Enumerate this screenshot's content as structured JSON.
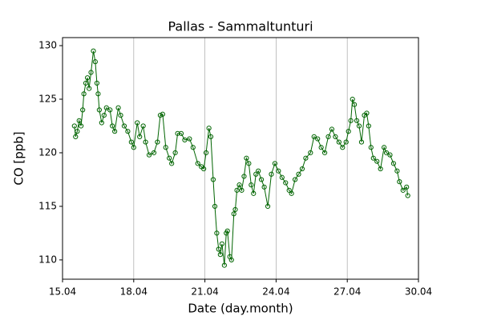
{
  "chart_data": {
    "type": "line",
    "title": "Pallas - Sammaltunturi",
    "xlabel": "Date (day.month)",
    "ylabel": "CO [ppb]",
    "color": "#006400",
    "marker": "open-circle",
    "xgrid": true,
    "xlim": [
      15,
      30
    ],
    "ylim": [
      108.2,
      130.75
    ],
    "xticks": [
      {
        "value": 15,
        "label": "15.04"
      },
      {
        "value": 18,
        "label": "18.04"
      },
      {
        "value": 21,
        "label": "21.04"
      },
      {
        "value": 24,
        "label": "24.04"
      },
      {
        "value": 27,
        "label": "27.04"
      },
      {
        "value": 30,
        "label": "30.04"
      }
    ],
    "yticks": [
      110,
      115,
      120,
      125,
      130
    ],
    "x": [
      15.5,
      15.55,
      15.62,
      15.7,
      15.78,
      15.85,
      15.9,
      15.98,
      16.05,
      16.12,
      16.2,
      16.3,
      16.38,
      16.45,
      16.5,
      16.55,
      16.65,
      16.75,
      16.85,
      17.0,
      17.1,
      17.2,
      17.35,
      17.45,
      17.6,
      17.75,
      17.9,
      18.0,
      18.15,
      18.25,
      18.4,
      18.5,
      18.65,
      18.85,
      19.0,
      19.12,
      19.22,
      19.35,
      19.5,
      19.6,
      19.75,
      19.85,
      20.0,
      20.15,
      20.35,
      20.5,
      20.7,
      20.85,
      20.95,
      21.05,
      21.17,
      21.25,
      21.35,
      21.42,
      21.5,
      21.58,
      21.65,
      21.72,
      21.82,
      21.9,
      21.95,
      22.05,
      22.12,
      22.22,
      22.28,
      22.35,
      22.45,
      22.55,
      22.65,
      22.75,
      22.85,
      22.95,
      23.05,
      23.15,
      23.25,
      23.38,
      23.5,
      23.65,
      23.8,
      23.95,
      24.1,
      24.25,
      24.4,
      24.55,
      24.65,
      24.8,
      24.95,
      25.1,
      25.25,
      25.45,
      25.6,
      25.75,
      25.9,
      26.05,
      26.2,
      26.35,
      26.5,
      26.65,
      26.8,
      26.95,
      27.05,
      27.15,
      27.22,
      27.3,
      27.4,
      27.5,
      27.6,
      27.72,
      27.82,
      27.9,
      28.0,
      28.1,
      28.25,
      28.4,
      28.55,
      28.65,
      28.8,
      28.95,
      29.1,
      29.2,
      29.35,
      29.5,
      29.55
    ],
    "values": [
      122.5,
      121.5,
      122,
      123,
      122.5,
      124,
      125.5,
      126.5,
      127,
      126,
      127.5,
      129.5,
      128.5,
      126.5,
      125.5,
      124,
      122.8,
      123.5,
      124.2,
      124,
      122.5,
      122,
      124.2,
      123.5,
      122.5,
      122,
      121,
      120.5,
      122.8,
      121.5,
      122.5,
      121,
      119.8,
      120,
      121,
      123.5,
      123.6,
      120.5,
      119.5,
      119,
      120,
      121.8,
      121.8,
      121.2,
      121.3,
      120.5,
      119,
      118.7,
      118.5,
      120,
      122.3,
      121.5,
      117.5,
      115,
      112.5,
      111,
      110.5,
      111.5,
      109.5,
      112.5,
      112.7,
      110.3,
      110,
      114.3,
      114.7,
      116.5,
      117,
      116.5,
      117.8,
      119.5,
      119,
      117,
      116.2,
      118,
      118.3,
      117.5,
      116.8,
      115,
      118,
      119,
      118.3,
      117.7,
      117.2,
      116.5,
      116.2,
      117.5,
      118,
      118.5,
      119.5,
      120,
      121.5,
      121.3,
      120.5,
      120,
      121.5,
      122.2,
      121.5,
      121,
      120.5,
      121,
      122,
      123,
      125,
      124.5,
      123,
      122.5,
      121,
      123.5,
      123.7,
      122.5,
      120.5,
      119.5,
      119.2,
      118.5,
      120.5,
      120,
      119.8,
      119,
      118.3,
      117.3,
      116.5,
      116.8,
      116
    ]
  }
}
